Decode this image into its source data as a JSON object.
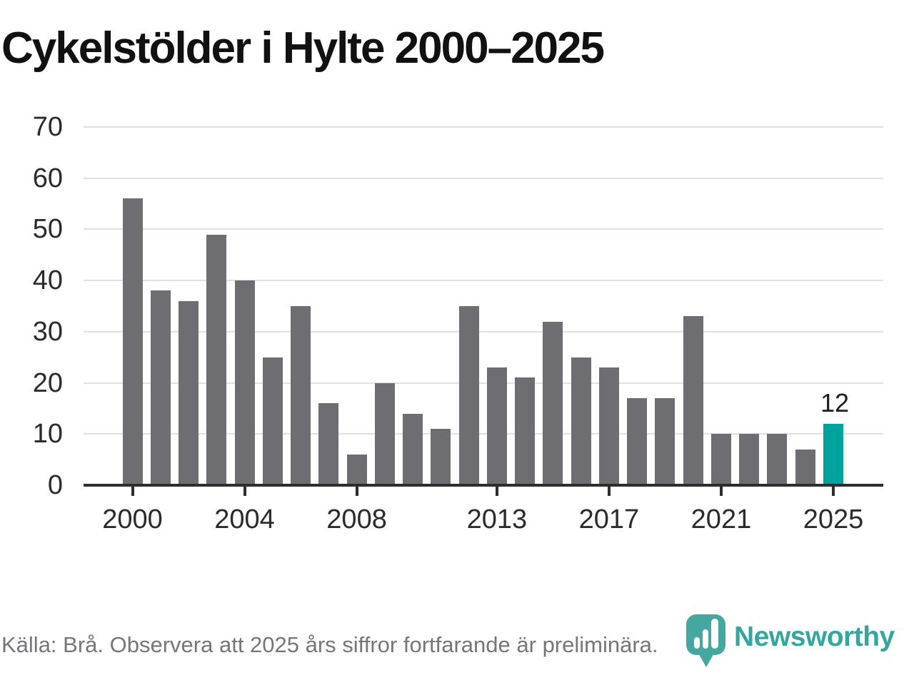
{
  "title": "Cykelstölder i Hylte 2000–2025",
  "footer": {
    "source_note": "Källa: Brå. Observera att 2025 års siffror fortfarande är preliminära.",
    "brand_name": "Newsworthy"
  },
  "colors": {
    "bar_default": "#6e6d71",
    "bar_highlight": "#00a39b",
    "axis": "#2e2e2e",
    "gridline": "#e1e1e1",
    "tick_label": "#2b2b2b",
    "title_text": "#111111",
    "footer_text": "#75757b",
    "brand_teal": "#35a69e"
  },
  "chart_data": {
    "type": "bar",
    "title": "Cykelstölder i Hylte 2000–2025",
    "categories": [
      2000,
      2001,
      2002,
      2003,
      2004,
      2005,
      2006,
      2007,
      2008,
      2009,
      2010,
      2011,
      2012,
      2013,
      2014,
      2015,
      2016,
      2017,
      2018,
      2019,
      2020,
      2021,
      2022,
      2023,
      2024,
      2025
    ],
    "values": [
      56,
      38,
      36,
      49,
      40,
      25,
      35,
      16,
      6,
      20,
      14,
      11,
      35,
      23,
      21,
      32,
      25,
      23,
      17,
      17,
      33,
      10,
      10,
      10,
      7,
      12
    ],
    "highlighted_category": 2025,
    "highlighted_value_label": "12",
    "x_tick_years": [
      2000,
      2004,
      2008,
      2013,
      2017,
      2021,
      2025
    ],
    "y_ticks": [
      0,
      10,
      20,
      30,
      40,
      50,
      60,
      70
    ],
    "ylim": [
      0,
      70
    ],
    "grid": "horizontal",
    "legend": "none",
    "xlabel": "",
    "ylabel": ""
  }
}
